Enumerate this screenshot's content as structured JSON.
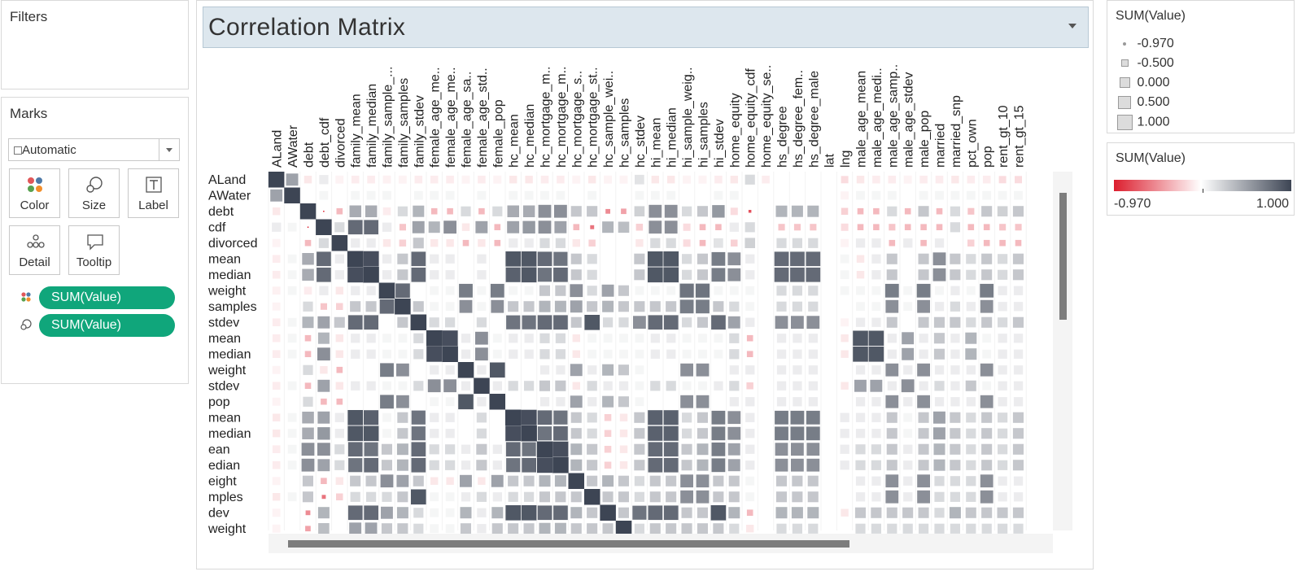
{
  "filters": {
    "title": "Filters"
  },
  "marks": {
    "title": "Marks",
    "type_label": "Automatic",
    "buttons": [
      {
        "label": "Color"
      },
      {
        "label": "Size"
      },
      {
        "label": "Label"
      },
      {
        "label": "Detail"
      },
      {
        "label": "Tooltip"
      }
    ],
    "pills": [
      {
        "label": "SUM(Value)",
        "icon": "color-dots-icon"
      },
      {
        "label": "SUM(Value)",
        "icon": "size-icon"
      }
    ]
  },
  "worksheet": {
    "title": "Correlation Matrix"
  },
  "size_legend": {
    "title": "SUM(Value)",
    "items": [
      {
        "label": "-0.970",
        "value": -0.97
      },
      {
        "label": "-0.500",
        "value": -0.5
      },
      {
        "label": "0.000",
        "value": 0
      },
      {
        "label": "0.500",
        "value": 0.5
      },
      {
        "label": "1.000",
        "value": 1
      }
    ]
  },
  "color_legend": {
    "title": "SUM(Value)",
    "min_label": "-0.970",
    "max_label": "1.000",
    "colors": [
      "#dc1e2e",
      "#ffffff",
      "#3d4554"
    ]
  },
  "chart_data": {
    "type": "heatmap",
    "title": "Correlation Matrix",
    "columns": [
      "ALand",
      "AWater",
      "debt",
      "debt_cdf",
      "divorced",
      "family_mean",
      "family_median",
      "family_sample_...",
      "family_samples",
      "family_stdev",
      "female_age_me..",
      "female_age_me..",
      "female_age_sa..",
      "female_age_std..",
      "female_pop",
      "hc_mean",
      "hc_median",
      "hc_mortgage_m..",
      "hc_mortgage_m..",
      "hc_mortgage_s..",
      "hc_mortgage_st..",
      "hc_sample_wei..",
      "hc_samples",
      "hc_stdev",
      "hi_mean",
      "hi_median",
      "hi_sample_weig..",
      "hi_samples",
      "hi_stdev",
      "home_equity",
      "home_equity_cdf",
      "home_equity_se..",
      "hs_degree",
      "hs_degree_fem..",
      "hs_degree_male",
      "lat",
      "lng",
      "male_age_mean",
      "male_age_medi..",
      "male_age_samp..",
      "male_age_stdev",
      "male_pop",
      "married",
      "married_snp",
      "pct_own",
      "pop",
      "rent_gt_10",
      "rent_gt_15"
    ],
    "rows": [
      "ALand",
      "AWater",
      "debt",
      "cdf",
      "divorced",
      "mean",
      "median",
      "weight",
      "samples",
      "stdev",
      "mean",
      "median",
      "weight",
      "stdev",
      "pop",
      "mean",
      "median",
      "ean",
      "edian",
      "eight",
      "mples",
      "dev",
      "weight"
    ],
    "value_range": [
      -0.97,
      1.0
    ],
    "values": [
      [
        1,
        0.5,
        -0.1,
        0.1,
        -0.05,
        -0.08,
        -0.08,
        -0.06,
        -0.05,
        -0.08,
        -0.08,
        -0.08,
        -0.05,
        -0.08,
        -0.05,
        -0.1,
        -0.1,
        -0.08,
        -0.08,
        -0.05,
        -0.1,
        -0.05,
        -0.05,
        0.15,
        -0.1,
        -0.1,
        -0.05,
        -0.05,
        -0.08,
        -0.1,
        0.2,
        -0.08,
        0,
        0,
        0,
        0,
        -0.15,
        -0.1,
        -0.08,
        -0.08,
        -0.05,
        -0.08,
        -0.08,
        -0.1,
        -0.08,
        -0.08,
        -0.15,
        -0.15
      ],
      [
        0.5,
        1,
        0,
        0.05,
        0,
        0.05,
        0.05,
        0.05,
        0,
        0.05,
        0.05,
        0.05,
        0,
        0.05,
        0,
        0.05,
        0.05,
        0.05,
        0.05,
        0,
        0.05,
        0,
        0,
        0.05,
        0.05,
        0.05,
        0,
        0,
        0.05,
        0.05,
        0,
        0,
        0,
        0,
        0,
        0,
        -0.05,
        0.05,
        0.05,
        0.05,
        0,
        0.05,
        0.05,
        0.05,
        0.05,
        0.05,
        0.05,
        0.05
      ],
      [
        -0.1,
        0,
        1,
        -0.97,
        -0.3,
        0.45,
        0.45,
        -0.08,
        0.2,
        0.4,
        -0.3,
        -0.3,
        0.2,
        -0.3,
        0.2,
        0.45,
        0.45,
        0.6,
        0.6,
        0.3,
        0.3,
        -0.5,
        -0.4,
        0.25,
        0.6,
        0.6,
        0.2,
        0.3,
        0.55,
        -0.15,
        -0.75,
        0,
        0.4,
        0.4,
        0.4,
        0,
        -0.2,
        -0.3,
        -0.3,
        0.2,
        -0.3,
        0.3,
        -0.3,
        0.2,
        -0.25,
        0.3,
        0.25,
        0.3
      ],
      [
        0.1,
        0.05,
        -0.97,
        1,
        0.2,
        0.8,
        0.8,
        0.1,
        -0.25,
        0.5,
        0.4,
        0.6,
        -0.1,
        0.5,
        -0.3,
        0.5,
        0.55,
        0.6,
        0.5,
        -0.3,
        -0.6,
        0.4,
        0.35,
        -0.2,
        0.6,
        0.6,
        -0.15,
        -0.3,
        -0.3,
        0.1,
        0.2,
        0,
        -0.25,
        -0.25,
        -0.25,
        0,
        -0.15,
        -0.3,
        -0.3,
        -0.25,
        -0.3,
        -0.3,
        -0.3,
        0.2,
        -0.3,
        -0.3,
        -0.25,
        -0.25
      ],
      [
        -0.05,
        0,
        -0.3,
        0.2,
        1,
        0.1,
        0.1,
        -0.1,
        -0.2,
        0.3,
        -0.1,
        -0.1,
        -0.3,
        -0.1,
        -0.3,
        0.1,
        0.1,
        0.2,
        0.2,
        -0.1,
        -0.2,
        0,
        0,
        -0.1,
        0.2,
        0.2,
        -0.15,
        -0.3,
        0.15,
        -0.2,
        0.25,
        0,
        0.2,
        0.2,
        0.2,
        0,
        -0.05,
        0.1,
        0.1,
        -0.3,
        0.1,
        -0.3,
        0.1,
        0,
        -0.2,
        -0.3,
        -0.3,
        -0.3
      ],
      [
        -0.08,
        0.05,
        0.45,
        0.8,
        0.1,
        1,
        0.95,
        0.1,
        0.3,
        0.8,
        0.1,
        0.1,
        0,
        0.1,
        0,
        0.9,
        0.9,
        0.8,
        0.75,
        0.3,
        0.2,
        0,
        0,
        0.3,
        0.9,
        0.9,
        0.2,
        0.3,
        0.7,
        0.6,
        0.1,
        0,
        0.8,
        0.8,
        0.8,
        0,
        0.05,
        -0.1,
        0.1,
        0.3,
        0,
        0.3,
        0.6,
        0.3,
        0.2,
        0.3,
        0.2,
        0.3
      ],
      [
        -0.08,
        0.05,
        0.45,
        0.8,
        0.1,
        0.95,
        1,
        0.1,
        0.3,
        0.8,
        0.1,
        0.1,
        0,
        0.1,
        0,
        0.85,
        0.9,
        0.75,
        0.8,
        0.3,
        0.2,
        0,
        0,
        0.3,
        0.9,
        0.9,
        0.2,
        0.3,
        0.7,
        0.6,
        0.1,
        0,
        0.8,
        0.8,
        0.8,
        0,
        0.05,
        -0.1,
        0.1,
        0.3,
        0,
        0.3,
        0.6,
        0.3,
        0.2,
        0.3,
        0.2,
        0.3
      ],
      [
        -0.06,
        0.05,
        -0.08,
        0.1,
        -0.1,
        0.1,
        0.1,
        1,
        0.8,
        0,
        0.05,
        0.05,
        0.7,
        0.05,
        0.7,
        0.05,
        0.05,
        0.3,
        0.3,
        0.6,
        0.2,
        0.5,
        0.3,
        0.05,
        0.05,
        0.05,
        0.75,
        0.75,
        0.05,
        0.05,
        0.05,
        0,
        0.2,
        0.2,
        0.2,
        0,
        0.05,
        0.05,
        0.05,
        0.7,
        0.05,
        0.7,
        0.05,
        0.1,
        0.05,
        0.7,
        0.1,
        0.1
      ],
      [
        -0.05,
        0,
        0.2,
        -0.25,
        -0.2,
        0.3,
        0.3,
        0.8,
        1,
        0.3,
        0.05,
        0.05,
        0.6,
        0.05,
        0.6,
        0.3,
        0.3,
        0.4,
        0.4,
        0.5,
        0.3,
        0.4,
        0.3,
        0.3,
        0.3,
        0.3,
        0.7,
        0.7,
        0.3,
        0.2,
        0.05,
        0,
        0.2,
        0.2,
        0.2,
        0,
        0,
        0.05,
        0.05,
        0.6,
        0.05,
        0.6,
        0.1,
        0.2,
        0.1,
        0.6,
        0.1,
        0.1
      ],
      [
        -0.08,
        0.05,
        0.4,
        0.5,
        0.3,
        0.8,
        0.8,
        0,
        0.3,
        1,
        0.2,
        0.2,
        0,
        0.2,
        0,
        0.75,
        0.75,
        0.8,
        0.8,
        0.3,
        0.9,
        0.2,
        0.2,
        0.6,
        0.8,
        0.8,
        0.2,
        0.3,
        0.8,
        0.5,
        0.1,
        0,
        0.6,
        0.6,
        0.6,
        0,
        -0.05,
        0.1,
        0.1,
        0.3,
        0,
        0.3,
        0.3,
        0.3,
        0.2,
        0.3,
        0.2,
        0.3
      ],
      [
        -0.08,
        0.05,
        -0.3,
        0.4,
        -0.1,
        0.1,
        0.1,
        0.05,
        0.05,
        0.2,
        1,
        0.95,
        0.1,
        0.6,
        0.05,
        0.1,
        0.1,
        0.2,
        0.2,
        -0.1,
        0.05,
        0.05,
        0.05,
        0.05,
        0.1,
        0.1,
        0.05,
        0.05,
        0.05,
        0.2,
        -0.3,
        0,
        0.1,
        0.1,
        0.1,
        0,
        -0.1,
        0.9,
        0.9,
        0.1,
        0.5,
        0.1,
        0.3,
        0.1,
        0.4,
        0.05,
        0.1,
        0.1
      ],
      [
        -0.08,
        0.05,
        -0.3,
        0.6,
        -0.1,
        0.1,
        0.1,
        0.05,
        0.05,
        0.2,
        0.95,
        1,
        0.1,
        0.6,
        0.05,
        0.1,
        0.1,
        0.2,
        0.2,
        -0.1,
        0.05,
        0.05,
        0.05,
        0.05,
        0.1,
        0.1,
        0.05,
        0.05,
        0.05,
        0.2,
        -0.3,
        0,
        0.1,
        0.1,
        0.1,
        0,
        -0.1,
        0.9,
        0.9,
        0.1,
        0.5,
        0.1,
        0.3,
        0.1,
        0.4,
        0.05,
        0.1,
        0.1
      ],
      [
        -0.05,
        0,
        0.2,
        -0.1,
        -0.3,
        0,
        0,
        0.7,
        0.6,
        0,
        0.1,
        0.1,
        1,
        0.1,
        0.9,
        0,
        0,
        0.1,
        0.1,
        0.5,
        0.1,
        0.4,
        0.3,
        0.05,
        0,
        0,
        0.6,
        0.6,
        0,
        0.1,
        0.1,
        0,
        0.1,
        0.1,
        0.1,
        0,
        0,
        0.1,
        0.1,
        0.6,
        0.1,
        0.6,
        0.1,
        0.1,
        0.1,
        0.6,
        0.1,
        0.1
      ],
      [
        -0.08,
        0.05,
        -0.3,
        0.5,
        -0.1,
        0.1,
        0.1,
        0.05,
        0.05,
        0.2,
        0.6,
        0.6,
        0.1,
        1,
        0.1,
        0.2,
        0.2,
        0.3,
        0.3,
        -0.1,
        0.2,
        0.1,
        0.1,
        0.05,
        0.2,
        0.2,
        0.05,
        0.05,
        0.1,
        0.2,
        -0.2,
        0,
        0.1,
        0.1,
        0.1,
        0,
        -0.1,
        0.5,
        0.5,
        0.1,
        0.6,
        0.1,
        0.2,
        0.1,
        0.3,
        0.05,
        0.1,
        0.1
      ],
      [
        -0.05,
        0,
        0.2,
        -0.3,
        -0.3,
        0,
        0,
        0.7,
        0.6,
        0,
        0.05,
        0.05,
        0.9,
        0.1,
        1,
        0,
        0,
        0.1,
        0.1,
        0.5,
        0.1,
        0.4,
        0.3,
        0.05,
        0,
        0,
        0.6,
        0.6,
        0,
        0.1,
        0.1,
        0,
        0.1,
        0.1,
        0.1,
        0,
        0,
        0.1,
        0.1,
        0.6,
        0.1,
        0.6,
        0.1,
        0.1,
        0.1,
        0.6,
        0.1,
        0.1
      ],
      [
        -0.1,
        0.05,
        0.45,
        0.5,
        0.1,
        0.9,
        0.85,
        0.05,
        0.3,
        0.75,
        0.1,
        0.1,
        0,
        0.2,
        0,
        1,
        0.95,
        0.8,
        0.75,
        0.3,
        0.2,
        -0.2,
        -0.1,
        0.3,
        0.85,
        0.85,
        0.2,
        0.3,
        0.7,
        0.6,
        0.1,
        0,
        0.7,
        0.7,
        0.7,
        0,
        0.1,
        0.1,
        0.1,
        0.3,
        0.05,
        0.3,
        0.5,
        0.3,
        0.2,
        0.3,
        0.2,
        0.3
      ],
      [
        -0.1,
        0.05,
        0.45,
        0.55,
        0.1,
        0.9,
        0.9,
        0.05,
        0.3,
        0.75,
        0.1,
        0.1,
        0,
        0.2,
        0,
        0.95,
        1,
        0.75,
        0.8,
        0.3,
        0.2,
        -0.2,
        -0.1,
        0.3,
        0.85,
        0.85,
        0.2,
        0.3,
        0.7,
        0.6,
        0.1,
        0,
        0.7,
        0.7,
        0.7,
        0,
        0.1,
        0.1,
        0.1,
        0.3,
        0.05,
        0.3,
        0.5,
        0.3,
        0.2,
        0.3,
        0.2,
        0.3
      ],
      [
        -0.08,
        0.05,
        0.6,
        0.6,
        0.2,
        0.8,
        0.75,
        0.3,
        0.4,
        0.8,
        0.2,
        0.2,
        0.1,
        0.3,
        0.1,
        0.8,
        0.75,
        1,
        0.95,
        0.4,
        0.3,
        -0.2,
        -0.1,
        0.3,
        0.8,
        0.8,
        0.3,
        0.4,
        0.7,
        0.5,
        0.1,
        0,
        0.6,
        0.6,
        0.6,
        0,
        0.1,
        0.2,
        0.2,
        0.3,
        0.1,
        0.3,
        0.4,
        0.3,
        0.2,
        0.3,
        0.2,
        0.3
      ],
      [
        -0.08,
        0.05,
        0.6,
        0.5,
        0.2,
        0.75,
        0.8,
        0.3,
        0.4,
        0.8,
        0.2,
        0.2,
        0.1,
        0.3,
        0.1,
        0.75,
        0.8,
        0.95,
        1,
        0.4,
        0.3,
        -0.2,
        -0.1,
        0.3,
        0.8,
        0.8,
        0.3,
        0.4,
        0.7,
        0.5,
        0.1,
        0,
        0.6,
        0.6,
        0.6,
        0,
        0.1,
        0.2,
        0.2,
        0.3,
        0.1,
        0.3,
        0.4,
        0.3,
        0.2,
        0.3,
        0.2,
        0.3
      ],
      [
        -0.05,
        0,
        0.3,
        -0.3,
        -0.1,
        0.3,
        0.3,
        0.6,
        0.5,
        0.3,
        -0.1,
        -0.1,
        0.5,
        -0.1,
        0.5,
        0.3,
        0.3,
        0.4,
        0.4,
        1,
        0.3,
        0.4,
        0.3,
        0.2,
        0.3,
        0.3,
        0.6,
        0.6,
        0.3,
        0.3,
        0.05,
        0,
        0.3,
        0.3,
        0.3,
        0,
        0,
        0.1,
        0.1,
        0.6,
        0.1,
        0.6,
        0.2,
        0.2,
        0.2,
        0.6,
        0.1,
        0.1
      ],
      [
        -0.1,
        0.05,
        0.3,
        -0.6,
        -0.2,
        0.2,
        0.2,
        0.2,
        0.3,
        0.9,
        0.05,
        0.05,
        0.1,
        0.2,
        0.1,
        0.2,
        0.2,
        0.3,
        0.3,
        0.3,
        1,
        0.3,
        0.3,
        0.2,
        0.3,
        0.3,
        0.6,
        0.6,
        0.3,
        0.3,
        0.05,
        0,
        0.3,
        0.3,
        0.3,
        0,
        0,
        0.1,
        0.1,
        0.6,
        0.1,
        0.6,
        0.2,
        0.2,
        0.2,
        0.6,
        0.1,
        0.1
      ],
      [
        -0.05,
        0,
        -0.5,
        0.4,
        0,
        0.8,
        0.8,
        0.5,
        0.4,
        0.2,
        0.05,
        0.05,
        0.4,
        0.1,
        0.4,
        0.9,
        0.9,
        0.8,
        0.8,
        0.4,
        0.3,
        1,
        0.3,
        0.75,
        0.8,
        0.8,
        0.3,
        0.3,
        0.9,
        0.4,
        -0.3,
        0,
        0.4,
        0.4,
        0.4,
        0,
        -0.1,
        0.3,
        0.3,
        0.3,
        0.3,
        0.3,
        0.2,
        0.4,
        0.3,
        0.3,
        0.3,
        0.3
      ],
      [
        -0.05,
        0,
        -0.4,
        0.35,
        0,
        0.5,
        0.5,
        0.3,
        0.3,
        0.2,
        0.05,
        0.05,
        0.3,
        0.1,
        0.3,
        0.3,
        0.3,
        0.4,
        0.4,
        0.3,
        0.3,
        0.3,
        1,
        0.2,
        0.3,
        0.3,
        0.3,
        0.3,
        0.3,
        0.2,
        -0.1,
        0,
        0.2,
        0.2,
        0.2,
        0,
        0,
        0.2,
        0.2,
        0.2,
        0.2,
        0.2,
        0.2,
        0.2,
        0.2,
        0.2,
        0.2,
        0.2
      ]
    ]
  }
}
